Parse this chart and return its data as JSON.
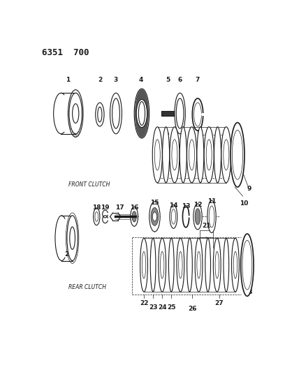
{
  "title": "6351  700",
  "bg_color": "#ffffff",
  "line_color": "#1a1a1a",
  "front_clutch_label": "FRONT CLUTCH",
  "rear_clutch_label": "REAR CLUTCH"
}
